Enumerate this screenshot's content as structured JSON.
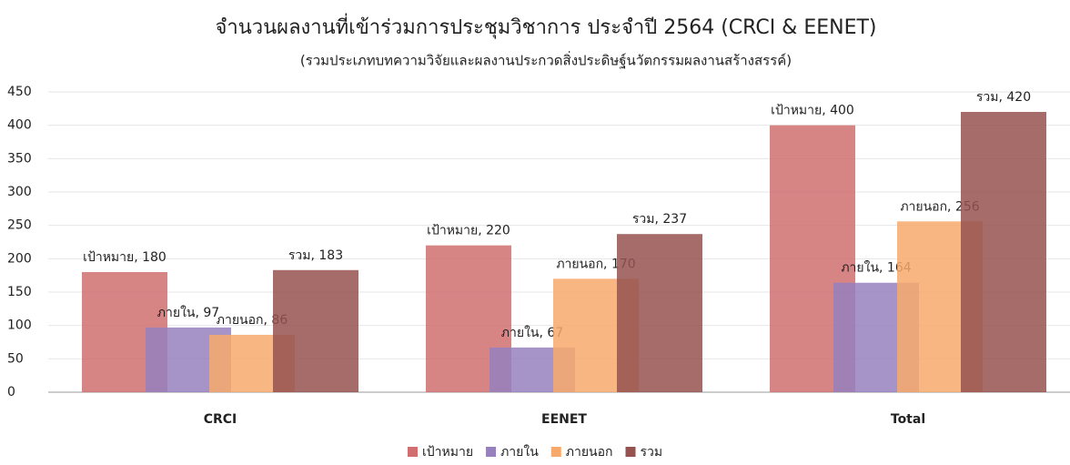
{
  "chart_data": {
    "type": "bar",
    "title": "จำนวนผลงานที่เข้าร่วมการประชุมวิชาการ ประจำปี 2564 (CRCI & EENET)",
    "subtitle": "(รวมประเภทบทความวิจัยและผลงานประกวดสิ่งประดิษฐ์นวัตกรรมผลงานสร้างสรรค์)",
    "categories": [
      "CRCI",
      "EENET",
      "Total"
    ],
    "series": [
      {
        "name": "เป้าหมาย",
        "color": "#d06e70",
        "values": [
          180,
          220,
          400
        ],
        "value_labels": [
          "เป้าหมาย, 180",
          "เป้าหมาย, 220",
          "เป้าหมาย, 400"
        ]
      },
      {
        "name": "ภายใน",
        "color": "#9680bd",
        "values": [
          97,
          67,
          164
        ],
        "value_labels": [
          "ภายใน, 97",
          "ภายใน, 67",
          "ภายใน, 164"
        ]
      },
      {
        "name": "ภายนอก",
        "color": "#f7a96c",
        "values": [
          86,
          170,
          256
        ],
        "value_labels": [
          "ภายนอก, 86",
          "ภายนอก, 170",
          "ภายนอก, 256"
        ]
      },
      {
        "name": "รวม",
        "color": "#955250",
        "values": [
          183,
          237,
          420
        ],
        "value_labels": [
          "รวม, 183",
          "รวม, 237",
          "รวม, 420"
        ]
      }
    ],
    "ylim": [
      0,
      450
    ],
    "yticks": [
      0,
      50,
      100,
      150,
      200,
      250,
      300,
      350,
      400,
      450
    ],
    "grid": true,
    "legend": "bottom"
  }
}
